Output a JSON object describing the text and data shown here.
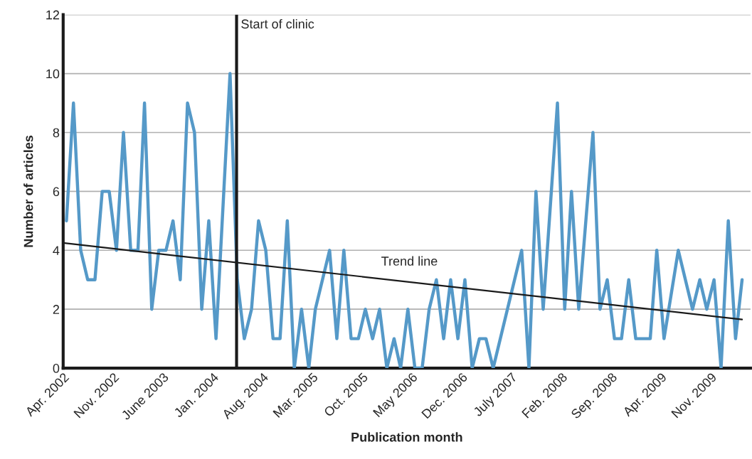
{
  "chart_data": {
    "type": "line",
    "xlabel": "Publication month",
    "ylabel": "Number of articles",
    "series": [
      {
        "color": "#5599c8",
        "x": [
          "2002-04-15",
          "2002-05-15",
          "2002-06-15",
          "2002-07-15",
          "2002-08-15",
          "2002-09-15",
          "2002-10-15",
          "2002-11-15",
          "2002-12-15",
          "2003-01-15",
          "2003-02-15",
          "2003-03-15",
          "2003-04-15",
          "2003-05-15",
          "2003-06-15",
          "2003-07-15",
          "2003-08-15",
          "2003-09-15",
          "2003-10-15",
          "2003-11-15",
          "2003-12-15",
          "2004-01-15",
          "2004-03-15",
          "2004-04-15",
          "2004-05-15",
          "2004-06-15",
          "2004-07-15",
          "2004-08-15",
          "2004-09-15",
          "2004-10-15",
          "2004-11-15",
          "2004-12-15",
          "2005-01-15",
          "2005-02-15",
          "2005-03-15",
          "2005-05-15",
          "2005-06-15",
          "2005-07-15",
          "2005-08-15",
          "2005-09-15",
          "2005-10-15",
          "2005-11-15",
          "2005-12-15",
          "2006-01-15",
          "2006-02-15",
          "2006-03-15",
          "2006-04-15",
          "2006-05-15",
          "2006-06-15",
          "2006-07-15",
          "2006-08-15",
          "2006-09-15",
          "2006-10-15",
          "2006-11-15",
          "2006-12-15",
          "2007-01-15",
          "2007-02-15",
          "2007-03-15",
          "2007-04-15",
          "2007-08-15",
          "2007-09-15",
          "2007-10-15",
          "2007-11-15",
          "2008-01-15",
          "2008-02-15",
          "2008-03-15",
          "2008-04-15",
          "2008-06-15",
          "2008-07-15",
          "2008-08-15",
          "2008-09-15",
          "2008-10-15",
          "2008-11-15",
          "2008-12-15",
          "2009-02-15",
          "2009-03-15",
          "2009-04-15",
          "2009-06-15",
          "2009-08-15",
          "2009-09-15",
          "2009-10-15",
          "2009-11-15",
          "2009-12-15",
          "2010-01-15",
          "2010-02-15",
          "2010-03-15"
        ],
        "values": [
          5,
          9,
          4,
          3,
          3,
          6,
          6,
          4,
          8,
          4,
          4,
          9,
          2,
          4,
          4,
          5,
          3,
          9,
          8,
          2,
          5,
          1,
          10,
          3,
          1,
          2,
          5,
          4,
          1,
          1,
          5,
          0,
          2,
          0,
          2,
          4,
          1,
          4,
          1,
          1,
          2,
          1,
          2,
          0,
          1,
          0,
          2,
          0,
          0,
          2,
          3,
          1,
          3,
          1,
          3,
          0,
          1,
          1,
          0,
          4,
          0,
          6,
          2,
          9,
          2,
          6,
          2,
          8,
          2,
          3,
          1,
          1,
          3,
          1,
          1,
          4,
          1,
          4,
          2,
          3,
          2,
          3,
          0,
          5,
          1,
          3
        ]
      },
      {
        "type": "line",
        "color": "#1a1a1a",
        "x": [
          "2002-04-01",
          "2010-03-15"
        ],
        "values": [
          4.25,
          1.65
        ]
      }
    ],
    "annotations": [
      "Trend line"
    ],
    "ref_lines": [
      {
        "axis": "x",
        "value": "2004-04-12",
        "label": "Start of clinic",
        "color": "#1a1a1a"
      }
    ],
    "xlim": [
      "2002-04-01",
      "2010-04-20"
    ],
    "xticks": [
      {
        "value": "2002-04-01",
        "label": "Apr. 2002"
      },
      {
        "value": "2002-11-01",
        "label": "Nov. 2002"
      },
      {
        "value": "2003-06-01",
        "label": "June 2003"
      },
      {
        "value": "2004-01-01",
        "label": "Jan. 2004"
      },
      {
        "value": "2004-08-01",
        "label": "Aug. 2004"
      },
      {
        "value": "2005-03-01",
        "label": "Mar. 2005"
      },
      {
        "value": "2005-10-01",
        "label": "Oct. 2005"
      },
      {
        "value": "2006-05-01",
        "label": "May 2006"
      },
      {
        "value": "2006-12-01",
        "label": "Dec. 2006"
      },
      {
        "value": "2007-07-01",
        "label": "July 2007"
      },
      {
        "value": "2008-02-01",
        "label": "Feb. 2008"
      },
      {
        "value": "2008-09-01",
        "label": "Sep. 2008"
      },
      {
        "value": "2009-04-01",
        "label": "Apr. 2009"
      },
      {
        "value": "2009-11-01",
        "label": "Nov. 2009"
      }
    ],
    "ylim": [
      0,
      12
    ],
    "yticks": [
      0,
      2,
      4,
      6,
      8,
      10,
      12
    ],
    "grid": "y",
    "legend": false,
    "marker": "none",
    "line_style": "solid"
  }
}
